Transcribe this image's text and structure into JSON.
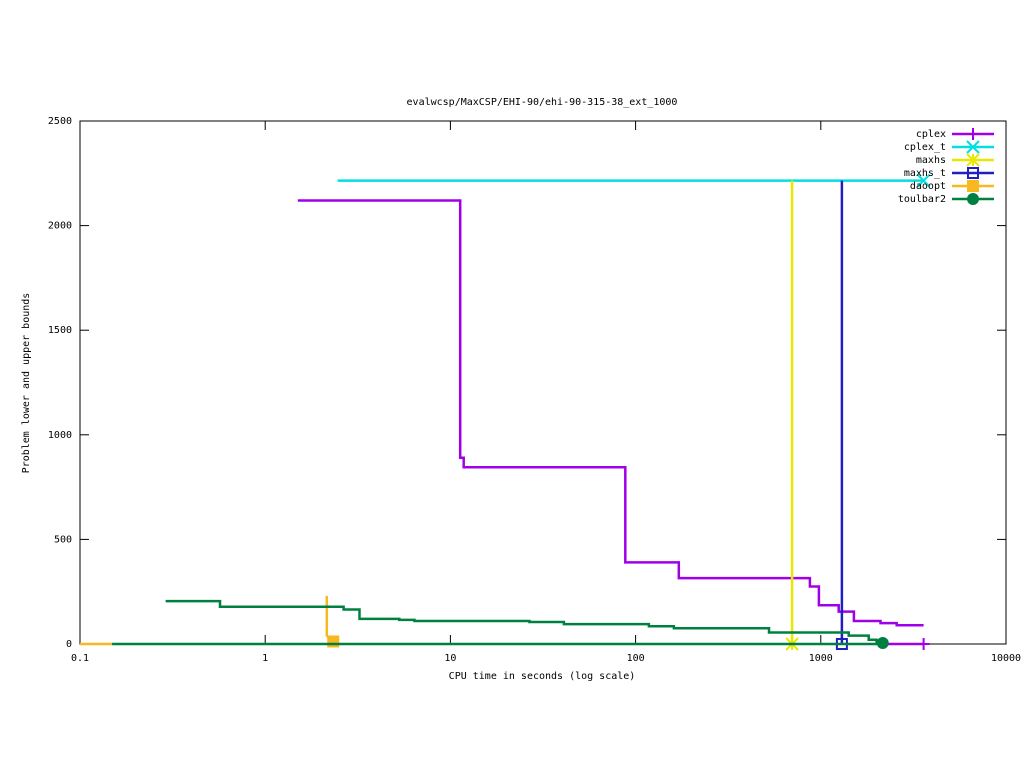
{
  "chart_data": {
    "type": "line",
    "title": "evalwcsp/MaxCSP/EHI-90/ehi-90-315-38_ext_1000",
    "x_label": "CPU time in seconds (log scale)",
    "y_label": "Problem lower and upper bounds",
    "x_scale": "log",
    "xlim": [
      0.1,
      10000
    ],
    "xticks": [
      0.1,
      1,
      10,
      100,
      1000,
      10000
    ],
    "ylim": [
      0,
      2500
    ],
    "yticks": [
      0,
      500,
      1000,
      1500,
      2000,
      2500
    ],
    "legend_position": "top-right",
    "series": [
      {
        "name": "cplex",
        "color": "#a000e8",
        "marker": "plus",
        "x": [
          1.5,
          11.3,
          11.3,
          11.8,
          11.8,
          88,
          88,
          171,
          171,
          873,
          873,
          977,
          977,
          1250,
          1250,
          1510,
          1510,
          2100,
          2100,
          2570,
          2570,
          3590,
          null,
          2100,
          3590
        ],
        "y": [
          2120,
          2120,
          890,
          890,
          845,
          845,
          390,
          390,
          315,
          315,
          275,
          275,
          185,
          185,
          155,
          155,
          110,
          110,
          100,
          100,
          90,
          90,
          null,
          0,
          0
        ]
      },
      {
        "name": "cplex_t",
        "color": "#00e0e0",
        "marker": "x",
        "x": [
          2.46,
          3590
        ],
        "y": [
          2215,
          2215
        ]
      },
      {
        "name": "maxhs",
        "color": "#e8e800",
        "marker": "star",
        "x": [
          700,
          700
        ],
        "y": [
          2215,
          0
        ]
      },
      {
        "name": "maxhs_t",
        "color": "#2020c0",
        "marker": "square",
        "x": [
          1300,
          1300
        ],
        "y": [
          2215,
          0
        ]
      },
      {
        "name": "daoopt",
        "color": "#f8b820",
        "marker": "filled-square",
        "x": [
          0.1,
          0.149,
          null,
          2.15,
          2.15,
          2.33,
          2.33
        ],
        "y": [
          0,
          0,
          null,
          230,
          40,
          12,
          12
        ]
      },
      {
        "name": "toulbar2",
        "color": "#008040",
        "marker": "circle",
        "x": [
          0.149,
          2160,
          null,
          0.29,
          0.57,
          0.57,
          2.65,
          2.65,
          3.23,
          3.23,
          5.3,
          5.3,
          6.4,
          6.4,
          26.7,
          26.7,
          41,
          41,
          118,
          118,
          161,
          161,
          525,
          525,
          1415,
          1415,
          1815,
          1815,
          2000,
          2000,
          2160
        ],
        "y": [
          0,
          0,
          null,
          205,
          205,
          178,
          178,
          165,
          165,
          120,
          120,
          115,
          115,
          110,
          110,
          105,
          105,
          95,
          95,
          85,
          85,
          75,
          75,
          55,
          55,
          40,
          40,
          20,
          20,
          5,
          5
        ]
      }
    ]
  }
}
